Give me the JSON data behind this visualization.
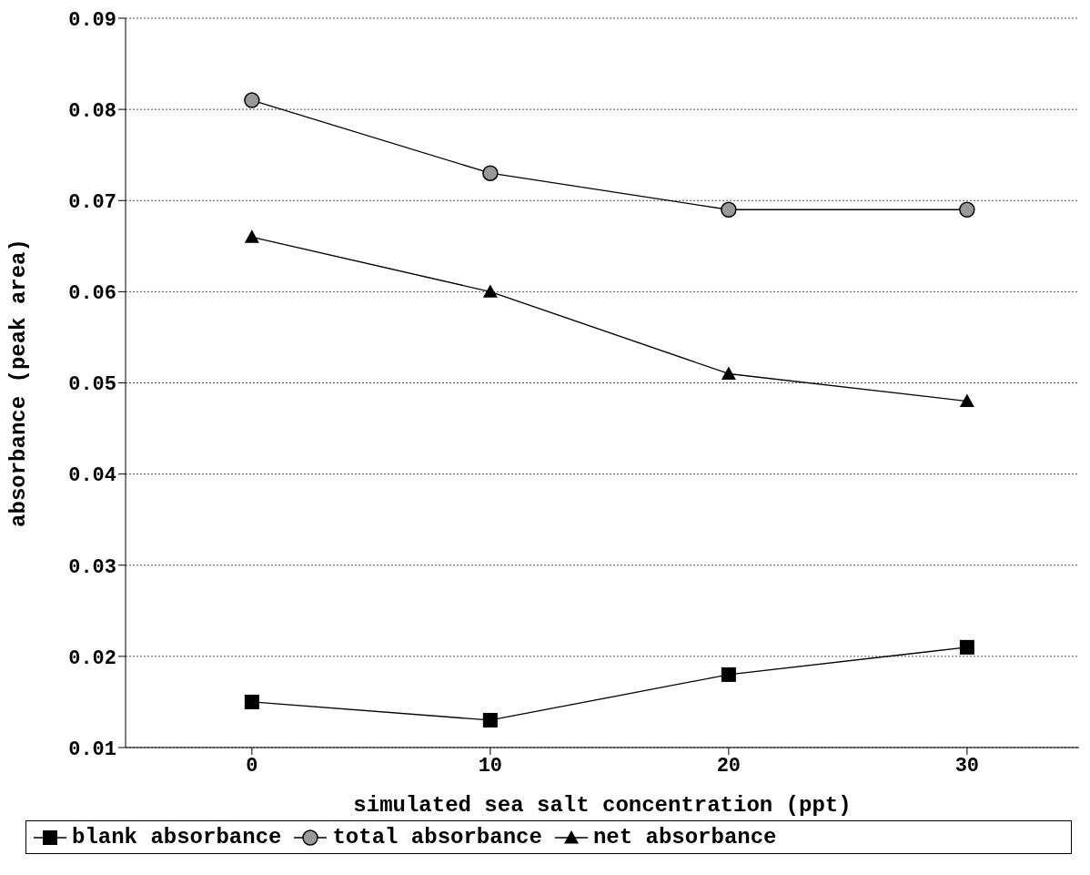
{
  "chart_data": {
    "type": "line",
    "xlabel": "simulated sea salt concentration (ppt)",
    "ylabel": "absorbance (peak area)",
    "x": [
      0,
      10,
      20,
      30
    ],
    "series": [
      {
        "name": "blank absorbance",
        "color": "#000000",
        "marker": "square",
        "values": [
          0.015,
          0.013,
          0.018,
          0.021
        ]
      },
      {
        "name": "total absorbance",
        "color": "#000000",
        "marker": "circle",
        "values": [
          0.081,
          0.073,
          0.069,
          0.069
        ]
      },
      {
        "name": "net absorbance",
        "color": "#000000",
        "marker": "triangle",
        "values": [
          0.066,
          0.06,
          0.051,
          0.048
        ]
      }
    ],
    "xlim": [
      -5.3,
      34.7
    ],
    "xticks": [
      0,
      10,
      20,
      30
    ],
    "ylim": [
      0.01,
      0.09
    ],
    "yticks": [
      0.01,
      0.02,
      0.03,
      0.04,
      0.05,
      0.06,
      0.07,
      0.08,
      0.09
    ],
    "grid": "y",
    "legend": "bottom",
    "line_style": "solid"
  }
}
